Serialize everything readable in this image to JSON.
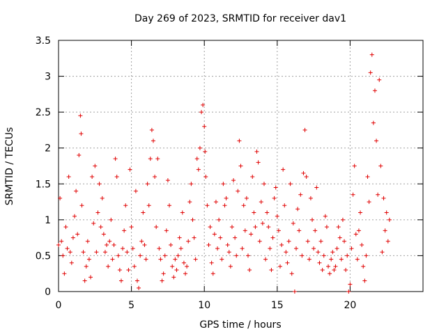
{
  "chart_data": {
    "type": "scatter",
    "title": "Day 269 of 2023, SRMTID for receiver dav1",
    "xlabel": "GPS time / hours",
    "ylabel": "SRMTID / TECUs",
    "xlim": [
      0,
      25
    ],
    "ylim": [
      0,
      3.5
    ],
    "xticks": [
      0,
      5,
      10,
      15,
      20
    ],
    "yticks": [
      0,
      0.5,
      1,
      1.5,
      2,
      2.5,
      3,
      3.5
    ],
    "xtick_labels": [
      "0",
      "5",
      "10",
      "15",
      "20"
    ],
    "ytick_labels": [
      "0",
      "0.5",
      "1",
      "1.5",
      "2",
      "2.5",
      "3",
      "3.5"
    ],
    "grid": true,
    "marker": "+",
    "color": "#e00000",
    "series": [
      {
        "name": "dav1",
        "x": [
          0.0,
          0.1,
          0.2,
          0.3,
          0.4,
          0.5,
          0.6,
          0.7,
          0.8,
          0.9,
          1.0,
          1.1,
          1.2,
          1.3,
          1.4,
          1.5,
          1.55,
          1.6,
          1.7,
          1.8,
          1.9,
          2.0,
          2.1,
          2.2,
          2.3,
          2.4,
          2.5,
          2.6,
          2.7,
          2.8,
          2.9,
          3.0,
          3.1,
          3.2,
          3.3,
          3.4,
          3.5,
          3.6,
          3.7,
          3.8,
          3.9,
          4.0,
          4.1,
          4.2,
          4.3,
          4.4,
          4.5,
          4.6,
          4.7,
          4.8,
          4.9,
          5.0,
          5.1,
          5.2,
          5.3,
          5.4,
          5.5,
          5.6,
          5.7,
          5.8,
          5.9,
          6.0,
          6.1,
          6.2,
          6.3,
          6.4,
          6.5,
          6.6,
          6.7,
          6.8,
          6.9,
          7.0,
          7.1,
          7.2,
          7.3,
          7.4,
          7.5,
          7.6,
          7.7,
          7.8,
          7.9,
          8.0,
          8.1,
          8.2,
          8.3,
          8.4,
          8.5,
          8.6,
          8.7,
          8.8,
          8.9,
          9.0,
          9.1,
          9.2,
          9.3,
          9.4,
          9.5,
          9.6,
          9.7,
          9.8,
          9.9,
          10.0,
          10.05,
          10.1,
          10.2,
          10.3,
          10.4,
          10.5,
          10.6,
          10.7,
          10.8,
          10.9,
          11.0,
          11.1,
          11.2,
          11.3,
          11.4,
          11.5,
          11.6,
          11.7,
          11.8,
          11.9,
          12.0,
          12.1,
          12.2,
          12.3,
          12.4,
          12.5,
          12.6,
          12.7,
          12.8,
          12.9,
          13.0,
          13.1,
          13.2,
          13.3,
          13.4,
          13.5,
          13.6,
          13.7,
          13.8,
          13.9,
          14.0,
          14.1,
          14.2,
          14.3,
          14.4,
          14.5,
          14.6,
          14.7,
          14.8,
          14.9,
          15.0,
          15.1,
          15.2,
          15.3,
          15.4,
          15.5,
          15.6,
          15.7,
          15.8,
          15.9,
          16.0,
          16.1,
          16.2,
          16.3,
          16.4,
          16.5,
          16.6,
          16.7,
          16.8,
          16.9,
          17.0,
          17.1,
          17.2,
          17.3,
          17.4,
          17.5,
          17.6,
          17.7,
          17.8,
          17.9,
          18.0,
          18.1,
          18.2,
          18.3,
          18.4,
          18.5,
          18.6,
          18.7,
          18.8,
          18.9,
          19.0,
          19.1,
          19.2,
          19.3,
          19.4,
          19.5,
          19.6,
          19.7,
          19.8,
          19.9,
          20.0,
          20.1,
          20.2,
          20.3,
          20.4,
          20.5,
          20.6,
          20.7,
          20.8,
          20.9,
          21.0,
          21.1,
          21.2,
          21.3,
          21.4,
          21.5,
          21.6,
          21.7,
          21.8,
          21.9,
          22.0,
          22.1,
          22.2,
          22.3,
          22.4,
          22.5,
          22.6,
          22.7
        ],
        "y": [
          0.65,
          1.3,
          0.7,
          0.5,
          0.25,
          0.9,
          0.6,
          1.6,
          0.55,
          0.4,
          0.75,
          1.05,
          1.4,
          0.8,
          1.9,
          2.45,
          2.2,
          1.2,
          0.55,
          0.15,
          0.35,
          0.7,
          0.45,
          0.2,
          1.6,
          0.95,
          1.75,
          0.55,
          1.1,
          1.5,
          0.9,
          1.3,
          0.8,
          0.55,
          0.65,
          0.35,
          0.7,
          1.0,
          0.45,
          0.65,
          1.85,
          1.6,
          0.5,
          0.3,
          0.15,
          0.6,
          0.85,
          1.2,
          0.55,
          0.3,
          1.7,
          0.9,
          0.6,
          0.35,
          1.4,
          0.15,
          0.05,
          0.5,
          0.7,
          1.1,
          0.65,
          0.45,
          1.5,
          1.2,
          1.85,
          2.25,
          2.1,
          1.6,
          0.9,
          1.85,
          0.6,
          0.45,
          0.15,
          0.25,
          0.5,
          0.85,
          1.55,
          1.2,
          0.65,
          0.35,
          0.2,
          0.45,
          0.3,
          0.5,
          0.75,
          0.6,
          1.1,
          0.4,
          0.25,
          0.35,
          0.7,
          1.25,
          1.5,
          1.0,
          0.75,
          0.45,
          1.85,
          1.7,
          2.0,
          2.5,
          2.6,
          2.3,
          1.95,
          1.6,
          1.2,
          0.65,
          0.9,
          0.4,
          0.25,
          0.8,
          1.25,
          0.6,
          1.0,
          0.75,
          0.45,
          1.5,
          1.2,
          1.3,
          0.65,
          0.55,
          0.35,
          0.9,
          1.55,
          0.75,
          0.5,
          1.4,
          2.1,
          1.75,
          0.6,
          1.2,
          0.85,
          1.3,
          0.5,
          0.3,
          0.8,
          1.6,
          1.1,
          0.9,
          1.95,
          1.8,
          0.7,
          1.25,
          0.95,
          1.5,
          0.45,
          1.1,
          0.9,
          0.6,
          0.3,
          0.75,
          1.3,
          1.45,
          1.05,
          0.85,
          0.35,
          0.65,
          1.7,
          1.2,
          0.55,
          0.4,
          0.7,
          1.5,
          0.25,
          0.95,
          0.0,
          0.6,
          1.15,
          0.85,
          1.35,
          0.5,
          1.65,
          2.25,
          1.6,
          0.7,
          0.45,
          1.3,
          1.0,
          0.6,
          0.85,
          1.45,
          0.55,
          0.4,
          0.7,
          0.3,
          0.5,
          1.05,
          0.9,
          0.35,
          0.25,
          0.45,
          0.55,
          0.3,
          0.35,
          0.6,
          0.9,
          0.75,
          0.45,
          1.0,
          0.7,
          0.3,
          0.5,
          0.0,
          0.1,
          0.6,
          1.35,
          1.75,
          0.8,
          0.45,
          0.85,
          1.1,
          0.65,
          0.35,
          0.15,
          0.5,
          1.6,
          1.25,
          3.05,
          3.3,
          2.35,
          2.8,
          2.1,
          1.35,
          2.95,
          1.75,
          0.55,
          1.3,
          0.85,
          1.1,
          0.7,
          1.0
        ]
      }
    ]
  }
}
